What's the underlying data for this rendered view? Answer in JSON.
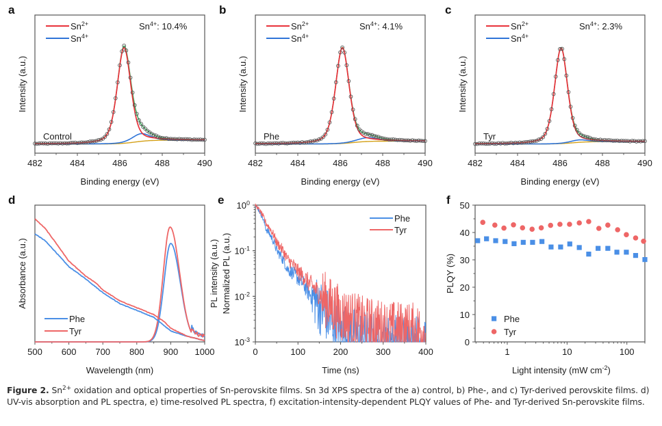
{
  "figure": {
    "caption": {
      "label": "Figure 2.",
      "text_pre_sup": "Sn",
      "sup": "2+",
      "text_post_sup": " oxidation and optical properties of Sn-perovskite films. Sn 3d XPS spectra of the a) control, b) Phe-, and c) Tyr-derived perovskite films. d) UV-vis absorption and PL spectra, e) time-resolved PL spectra, f) excitation-intensity-dependent PLQY values of Phe- and Tyr-derived Sn-perovskite films."
    }
  },
  "colors": {
    "sn2": "#e8323a",
    "sn4": "#2f74d8",
    "envelope": "#3aa55a",
    "background": "#d4a017",
    "raw_marker": "#555555",
    "phe": "#4a8fe6",
    "tyr": "#ee6666",
    "axis": "#555555"
  },
  "chart_data": [
    {
      "panel": "a",
      "type": "line",
      "title": "",
      "sample_label": "Control",
      "annotation": {
        "prefix": "Sn",
        "sup": "4+",
        "suffix": ": 10.4%"
      },
      "xlabel": "Binding energy (eV)",
      "ylabel": "Intensity (a.u.)",
      "xlim": [
        482,
        490
      ],
      "xticks": [
        482,
        484,
        486,
        488,
        490
      ],
      "xtick_labels": [
        "482",
        "484",
        "486",
        "488",
        "490"
      ],
      "legend": {
        "placement": "top-left",
        "entries": [
          {
            "name": "Sn",
            "sup": "2+",
            "color_key": "sn2"
          },
          {
            "name": "Sn",
            "sup": "4+",
            "color_key": "sn4"
          }
        ]
      },
      "components": {
        "sn2": {
          "center": 486.2,
          "amplitude": 1.0,
          "width": 0.38
        },
        "sn4": {
          "center": 487.0,
          "amplitude": 0.08,
          "width": 0.5
        },
        "background": {
          "step_center": 486.7,
          "low": 0.0,
          "high": 0.04
        },
        "baseline": 0.01
      },
      "sn4_fraction_percent": 10.4
    },
    {
      "panel": "b",
      "type": "line",
      "title": "",
      "sample_label": "Phe",
      "annotation": {
        "prefix": "Sn",
        "sup": "4+",
        "suffix": ": 4.1%"
      },
      "xlabel": "Binding energy (eV)",
      "ylabel": "Intensity (a.u.)",
      "xlim": [
        482,
        490
      ],
      "xticks": [
        482,
        484,
        486,
        488,
        490
      ],
      "xtick_labels": [
        "482",
        "484",
        "486",
        "488",
        "490"
      ],
      "legend": {
        "placement": "top-left",
        "entries": [
          {
            "name": "Sn",
            "sup": "2+",
            "color_key": "sn2"
          },
          {
            "name": "Sn",
            "sup": "4+",
            "color_key": "sn4"
          }
        ]
      },
      "components": {
        "sn2": {
          "center": 486.1,
          "amplitude": 1.0,
          "width": 0.38
        },
        "sn4": {
          "center": 487.3,
          "amplitude": 0.04,
          "width": 0.6
        },
        "background": {
          "step_center": 486.6,
          "low": 0.0,
          "high": 0.03
        },
        "baseline": 0.01
      },
      "sn4_fraction_percent": 4.1
    },
    {
      "panel": "c",
      "type": "line",
      "title": "",
      "sample_label": "Tyr",
      "annotation": {
        "prefix": "Sn",
        "sup": "4+",
        "suffix": ": 2.3%"
      },
      "xlabel": "Binding energy (eV)",
      "ylabel": "Intensity (a.u.)",
      "xlim": [
        482,
        490
      ],
      "xticks": [
        482,
        484,
        486,
        488,
        490
      ],
      "xtick_labels": [
        "482",
        "484",
        "486",
        "488",
        "490"
      ],
      "legend": {
        "placement": "top-left",
        "entries": [
          {
            "name": "Sn",
            "sup": "2+",
            "color_key": "sn2"
          },
          {
            "name": "Sn",
            "sup": "4+",
            "color_key": "sn4"
          }
        ]
      },
      "components": {
        "sn2": {
          "center": 486.05,
          "amplitude": 1.0,
          "width": 0.36
        },
        "sn4": {
          "center": 486.9,
          "amplitude": 0.025,
          "width": 0.5
        },
        "background": {
          "step_center": 486.6,
          "low": 0.0,
          "high": 0.025
        },
        "baseline": 0.01
      },
      "sn4_fraction_percent": 2.3
    },
    {
      "panel": "d",
      "type": "line",
      "title": "",
      "xlabel": "Wavelength (nm)",
      "ylabel": "Absorbance (a.u.)",
      "ylabel_right": "PL intensity (a.u.)",
      "xlim": [
        500,
        1000
      ],
      "xticks": [
        500,
        600,
        700,
        800,
        900,
        1000
      ],
      "xtick_labels": [
        "500",
        "600",
        "700",
        "800",
        "900",
        "1000"
      ],
      "legend": {
        "placement": "bottom-left",
        "entries": [
          {
            "name": "Phe",
            "color_key": "phe"
          },
          {
            "name": "Tyr",
            "color_key": "tyr"
          }
        ]
      },
      "series": [
        {
          "name": "Phe",
          "kind": "absorbance",
          "x": [
            500,
            530,
            560,
            600,
            650,
            700,
            750,
            800,
            850,
            880,
            900,
            950,
            1000
          ],
          "y": [
            0.79,
            0.74,
            0.66,
            0.55,
            0.46,
            0.36,
            0.28,
            0.23,
            0.18,
            0.12,
            0.08,
            0.04,
            0.01
          ]
        },
        {
          "name": "Tyr",
          "kind": "absorbance",
          "x": [
            500,
            530,
            560,
            600,
            650,
            680,
            700,
            750,
            800,
            850,
            880,
            900,
            950,
            1000
          ],
          "y": [
            0.9,
            0.83,
            0.73,
            0.59,
            0.48,
            0.43,
            0.38,
            0.3,
            0.25,
            0.2,
            0.15,
            0.1,
            0.04,
            0.01
          ]
        },
        {
          "name": "Phe",
          "kind": "PL",
          "peak_nm": 900,
          "peak": 0.72,
          "fwhm_nm": 55
        },
        {
          "name": "Tyr",
          "kind": "PL",
          "peak_nm": 898,
          "peak": 0.84,
          "fwhm_nm": 55
        }
      ]
    },
    {
      "panel": "e",
      "type": "line",
      "title": "",
      "xlabel": "Time (ns)",
      "ylabel": "Normalized PL (a.u.)",
      "xlim": [
        0,
        400
      ],
      "ylim": [
        0.001,
        1
      ],
      "yscale": "log",
      "xticks": [
        0,
        100,
        200,
        300,
        400
      ],
      "xtick_labels": [
        "0",
        "100",
        "200",
        "300",
        "400"
      ],
      "yticks": [
        0.001,
        0.01,
        0.1,
        1
      ],
      "ytick_labels": [
        {
          "base": "10",
          "exp": "-3"
        },
        {
          "base": "10",
          "exp": "-2"
        },
        {
          "base": "10",
          "exp": "-1"
        },
        {
          "base": "10",
          "exp": "0"
        }
      ],
      "legend": {
        "placement": "top-right",
        "entries": [
          {
            "name": "Phe",
            "color_key": "phe"
          },
          {
            "name": "Tyr",
            "color_key": "tyr"
          }
        ]
      },
      "series": [
        {
          "name": "Phe",
          "x": [
            0,
            25,
            50,
            75,
            100,
            125,
            150,
            175,
            200,
            250,
            300,
            400
          ],
          "y": [
            1.0,
            0.3,
            0.1,
            0.04,
            0.025,
            0.012,
            0.006,
            0.003,
            0.0018,
            0.0012,
            0.001,
            0.001
          ],
          "noise_floor": 0.0015
        },
        {
          "name": "Tyr",
          "x": [
            0,
            25,
            50,
            75,
            100,
            125,
            150,
            175,
            200,
            250,
            300,
            400
          ],
          "y": [
            1.0,
            0.4,
            0.15,
            0.065,
            0.035,
            0.02,
            0.011,
            0.0065,
            0.004,
            0.0025,
            0.002,
            0.0017
          ],
          "noise_floor": 0.0018
        }
      ]
    },
    {
      "panel": "f",
      "type": "scatter",
      "title": "",
      "xlabel": "Light intensity (mW cm",
      "xlabel_sup": "-2",
      "xlabel_suffix": ")",
      "ylabel": "PLQY (%)",
      "xscale": "log",
      "xlim": [
        0.29,
        200
      ],
      "ylim": [
        0,
        50
      ],
      "xticks": [
        1,
        10,
        100
      ],
      "xtick_labels": [
        "1",
        "10",
        "100"
      ],
      "yticks": [
        0,
        10,
        20,
        30,
        40,
        50
      ],
      "ytick_labels": [
        "0",
        "10",
        "20",
        "30",
        "40",
        "50"
      ],
      "legend": {
        "placement": "bottom-left",
        "entries": [
          {
            "name": "Phe",
            "marker": "square",
            "color_key": "phe"
          },
          {
            "name": "Tyr",
            "marker": "circle",
            "color_key": "tyr"
          }
        ]
      },
      "series": [
        {
          "name": "Phe",
          "marker": "square",
          "x": [
            0.32,
            0.45,
            0.64,
            0.92,
            1.3,
            1.85,
            2.65,
            3.8,
            5.4,
            7.8,
            11.1,
            16,
            23,
            33,
            48,
            68,
            98,
            140,
            200
          ],
          "y": [
            37.0,
            37.7,
            37.0,
            36.7,
            35.9,
            36.4,
            36.4,
            36.7,
            34.7,
            34.7,
            35.8,
            34.5,
            32.1,
            34.2,
            34.2,
            32.8,
            32.8,
            31.6,
            30.1
          ]
        },
        {
          "name": "Tyr",
          "marker": "circle",
          "x": [
            0.39,
            0.62,
            0.88,
            1.27,
            1.8,
            2.6,
            3.7,
            5.3,
            7.6,
            11,
            16,
            23,
            34,
            48,
            70,
            98,
            140,
            190
          ],
          "y": [
            43.7,
            42.7,
            41.6,
            42.8,
            41.7,
            41.2,
            41.7,
            42.6,
            43.0,
            43.0,
            43.5,
            44.0,
            41.5,
            42.7,
            41.0,
            39.2,
            38.0,
            36.8
          ]
        }
      ]
    }
  ]
}
